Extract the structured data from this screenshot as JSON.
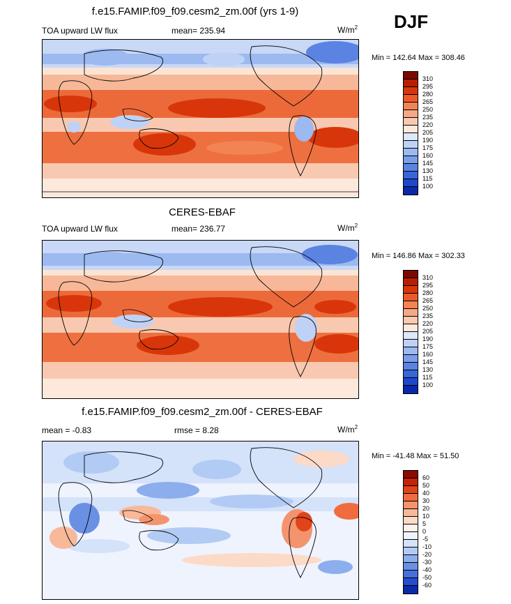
{
  "season": "DJF",
  "panels": [
    {
      "title": "f.e15.FAMIP.f09_f09.cesm2_zm.00f (yrs 1-9)",
      "left_label": "TOA upward LW flux",
      "center_label": "mean= 235.94",
      "units": "W/m",
      "units_sup": "2",
      "minmax": "Min = 142.64 Max = 308.46",
      "colorbar_labels": [
        "310",
        "295",
        "280",
        "265",
        "250",
        "235",
        "220",
        "205",
        "190",
        "175",
        "160",
        "145",
        "130",
        "115",
        "100"
      ],
      "colors": [
        "#7a0a00",
        "#b81e02",
        "#d8360a",
        "#ec5a2c",
        "#f28454",
        "#f4a885",
        "#f8c9b0",
        "#fce9dc",
        "#dde8fa",
        "#bfd2f6",
        "#9cb9f0",
        "#7a9ee9",
        "#5a83e2",
        "#3866da",
        "#1e48cc",
        "#0a28aa"
      ]
    },
    {
      "title": "CERES-EBAF",
      "left_label": "TOA upward LW flux",
      "center_label": "mean= 236.77",
      "units": "W/m",
      "units_sup": "2",
      "minmax": "Min = 146.86 Max = 302.33",
      "colorbar_labels": [
        "310",
        "295",
        "280",
        "265",
        "250",
        "235",
        "220",
        "205",
        "190",
        "175",
        "160",
        "145",
        "130",
        "115",
        "100"
      ],
      "colors": [
        "#7a0a00",
        "#b81e02",
        "#d8360a",
        "#ec5a2c",
        "#f28454",
        "#f4a885",
        "#f8c9b0",
        "#fce9dc",
        "#dde8fa",
        "#bfd2f6",
        "#9cb9f0",
        "#7a9ee9",
        "#5a83e2",
        "#3866da",
        "#1e48cc",
        "#0a28aa"
      ]
    },
    {
      "title": "f.e15.FAMIP.f09_f09.cesm2_zm.00f - CERES-EBAF",
      "left_label": "mean =  -0.83",
      "center_label": "rmse =   8.28",
      "units": "W/m",
      "units_sup": "2",
      "minmax": "Min = -41.48 Max =  51.50",
      "colorbar_labels": [
        "60",
        "50",
        "40",
        "30",
        "20",
        "10",
        "5",
        "0",
        "-5",
        "-10",
        "-20",
        "-30",
        "-40",
        "-50",
        "-60"
      ],
      "colors": [
        "#8c0a00",
        "#c4220a",
        "#e04418",
        "#f06c3e",
        "#f4946e",
        "#f8b89a",
        "#fcdac8",
        "#fdf2ea",
        "#eef3fd",
        "#d4e2fa",
        "#b2cbf4",
        "#8caeec",
        "#6a90e4",
        "#4670dc",
        "#244ed0",
        "#0a2aa8"
      ]
    }
  ]
}
